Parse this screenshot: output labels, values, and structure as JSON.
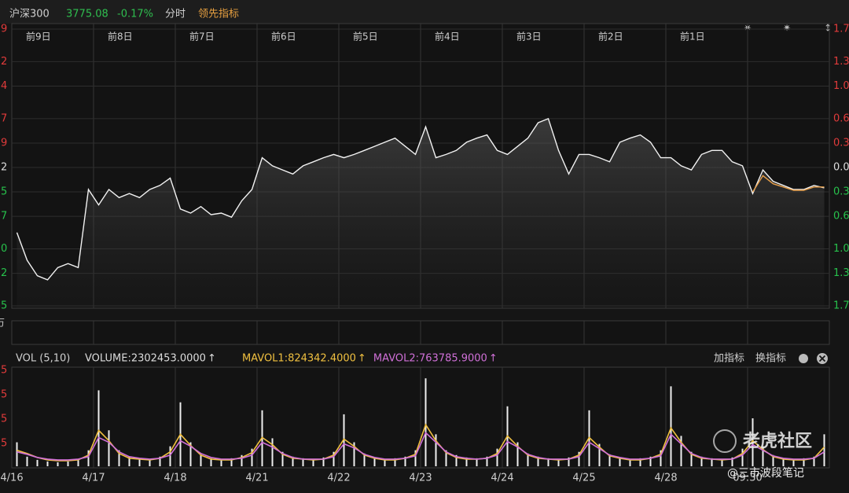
{
  "header": {
    "index_name": "沪深300",
    "price": "3775.08",
    "change": "-0.17%",
    "mode": "分时",
    "indicator": "领先指标"
  },
  "day_labels": [
    "前9日",
    "前8日",
    "前7日",
    "前6日",
    "前5日",
    "前4日",
    "前3日",
    "前2日",
    "前1日"
  ],
  "price_left_labels": [
    "9",
    "2",
    "4",
    "7",
    "9",
    "2",
    "5",
    "7",
    "0",
    "2",
    "5"
  ],
  "strip_unit": "万",
  "volume_panel": {
    "name": "VOL (5,10)",
    "arrow": "↑",
    "buttons": [
      "加指标",
      "换指标"
    ],
    "left_labels": [
      "5",
      "5",
      "5",
      "5"
    ]
  },
  "dates": [
    "4/16",
    "4/17",
    "4/18",
    "4/21",
    "4/22",
    "4/23",
    "4/24",
    "4/25",
    "4/28",
    "09:30"
  ],
  "watermark": {
    "logo": "老虎社区",
    "author": "@三市波段笔记"
  },
  "chart_data": [
    {
      "type": "line",
      "ylim": [
        -1.7,
        1.7
      ],
      "grid": true,
      "up_color": "#e23b3b",
      "down_color": "#27c24c",
      "zero_color": "#dddddd",
      "yticks": [
        1.7,
        1.3,
        {
          "value": 1,
          "label": "1.0"
        },
        0.6,
        0.3,
        {
          "value": 0,
          "label": "0.0"
        },
        {
          "value": -0.3,
          "label": "0.3"
        },
        {
          "value": -0.6,
          "label": "0.6"
        },
        {
          "value": -1,
          "label": "1.0"
        },
        {
          "value": -1.3,
          "label": "1.3"
        },
        {
          "value": -1.7,
          "label": "1.7"
        }
      ],
      "series": [
        {
          "color": "#f2f2f2",
          "values": [
            -0.8,
            -1.14,
            -1.33,
            -1.38,
            -1.23,
            -1.18,
            -1.23,
            -0.27,
            -0.46,
            -0.27,
            -0.37,
            -0.32,
            -0.37,
            -0.27,
            -0.22,
            -0.13,
            -0.51,
            -0.56,
            -0.48,
            -0.58,
            -0.56,
            -0.61,
            -0.41,
            -0.27,
            0.12,
            0.02,
            -0.03,
            -0.08,
            0.02,
            0.07,
            0.12,
            0.16,
            0.12,
            0.16,
            0.21,
            0.26,
            0.31,
            0.36,
            0.26,
            0.16,
            0.5,
            0.12,
            0.16,
            0.21,
            0.31,
            0.36,
            0.4,
            0.21,
            0.16,
            0.26,
            0.36,
            0.55,
            0.6,
            0.21,
            -0.08,
            0.16,
            0.16,
            0.12,
            0.07,
            0.31,
            0.36,
            0.4,
            0.31,
            0.12,
            0.12,
            0.02,
            -0.03,
            0.16,
            0.21,
            0.21,
            0.07,
            0.02,
            -0.32,
            -0.03,
            -0.17,
            -0.22,
            -0.27,
            -0.27,
            -0.22,
            -0.25
          ]
        },
        {
          "color": "#e9a04a",
          "values": [
            null,
            null,
            null,
            null,
            null,
            null,
            null,
            null,
            null,
            null,
            null,
            null,
            null,
            null,
            null,
            null,
            null,
            null,
            null,
            null,
            null,
            null,
            null,
            null,
            null,
            null,
            null,
            null,
            null,
            null,
            null,
            null,
            null,
            null,
            null,
            null,
            null,
            null,
            null,
            null,
            null,
            null,
            null,
            null,
            null,
            null,
            null,
            null,
            null,
            null,
            null,
            null,
            null,
            null,
            null,
            null,
            null,
            null,
            null,
            null,
            null,
            null,
            null,
            null,
            null,
            null,
            null,
            null,
            null,
            null,
            null,
            null,
            -0.3,
            -0.1,
            -0.2,
            -0.24,
            -0.28,
            -0.28,
            -0.24,
            -0.24
          ]
        }
      ]
    },
    {
      "type": "bar",
      "ylim": [
        0,
        120
      ],
      "series": [
        {
          "name": "VOLUME:2302453.0000",
          "color": "#eeeeee",
          "values": [
            30,
            12,
            8,
            6,
            5,
            6,
            8,
            20,
            95,
            45,
            20,
            12,
            10,
            9,
            12,
            25,
            80,
            30,
            15,
            10,
            8,
            10,
            14,
            22,
            70,
            35,
            18,
            12,
            10,
            9,
            11,
            18,
            65,
            30,
            16,
            11,
            9,
            10,
            12,
            20,
            110,
            40,
            20,
            14,
            11,
            10,
            12,
            22,
            75,
            30,
            16,
            12,
            10,
            9,
            11,
            18,
            70,
            28,
            15,
            11,
            9,
            10,
            12,
            20,
            100,
            38,
            18,
            12,
            10,
            9,
            11,
            22,
            60,
            25,
            14,
            10,
            9,
            10,
            12,
            40
          ]
        },
        {
          "name": "MAVOL1:824342.4000",
          "color": "#f0c040",
          "values": [
            20,
            16,
            11,
            8,
            7,
            7,
            8,
            14,
            45,
            32,
            16,
            10,
            9,
            8,
            10,
            18,
            40,
            26,
            14,
            9,
            8,
            8,
            11,
            17,
            36,
            27,
            15,
            10,
            9,
            8,
            9,
            14,
            34,
            25,
            14,
            10,
            8,
            8,
            10,
            15,
            52,
            32,
            17,
            11,
            9,
            9,
            10,
            16,
            38,
            25,
            14,
            10,
            9,
            8,
            9,
            14,
            36,
            24,
            13,
            10,
            8,
            8,
            10,
            15,
            48,
            30,
            15,
            10,
            9,
            8,
            9,
            16,
            32,
            21,
            12,
            9,
            8,
            8,
            10,
            24
          ]
        },
        {
          "name": "MAVOL2:763785.9000",
          "color": "#d070d8",
          "values": [
            18,
            15,
            11,
            9,
            8,
            8,
            9,
            12,
            36,
            30,
            18,
            12,
            10,
            9,
            10,
            14,
            32,
            25,
            16,
            11,
            9,
            9,
            10,
            14,
            30,
            24,
            16,
            11,
            9,
            9,
            9,
            12,
            28,
            23,
            15,
            11,
            9,
            9,
            10,
            13,
            42,
            30,
            18,
            12,
            10,
            9,
            10,
            14,
            31,
            24,
            15,
            11,
            9,
            9,
            9,
            12,
            30,
            22,
            14,
            11,
            9,
            9,
            10,
            13,
            40,
            28,
            16,
            11,
            9,
            9,
            9,
            14,
            27,
            20,
            13,
            10,
            9,
            9,
            10,
            18
          ]
        }
      ]
    }
  ]
}
